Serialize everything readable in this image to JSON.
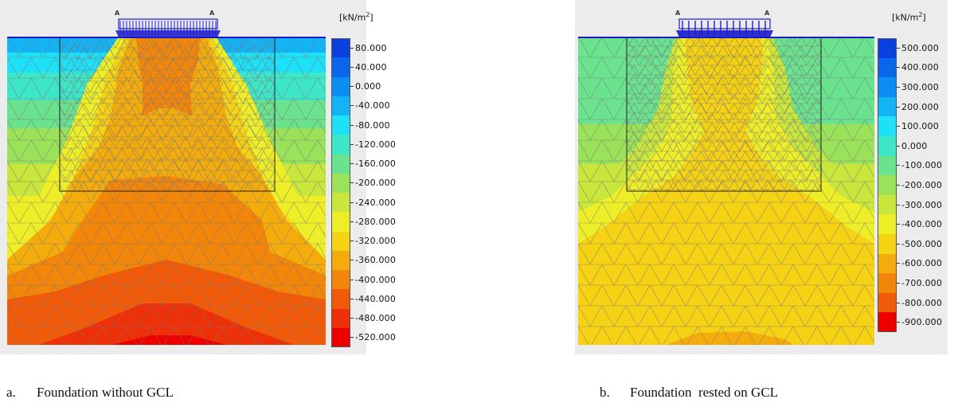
{
  "panel_a": {
    "unit": "[kN/m 2]",
    "unit_base": "[kN/m",
    "unit_exp": "2",
    "unit_close": "]",
    "load_labels": [
      "A",
      "A"
    ],
    "legend": {
      "labels": [
        "80.000",
        "40.000",
        "0.000",
        "-40.000",
        "-80.000",
        "-120.000",
        "-160.000",
        "-200.000",
        "-240.000",
        "-280.000",
        "-320.000",
        "-360.000",
        "-400.000",
        "-440.000",
        "-480.000",
        "-520.000"
      ],
      "colors": [
        "#0a3fe0",
        "#0a66ea",
        "#0a8ef2",
        "#12b4f6",
        "#1ee0f6",
        "#3ee6c8",
        "#6ae28e",
        "#9ae25a",
        "#c8e63c",
        "#eeee28",
        "#f6d214",
        "#f4ac0c",
        "#f2860a",
        "#f05a08",
        "#ee3008",
        "#ec0000"
      ]
    },
    "caption_letter": "a.",
    "caption_text": "Foundation without GCL"
  },
  "panel_b": {
    "unit": "[kN/m 2]",
    "unit_base": "[kN/m",
    "unit_exp": "2",
    "unit_close": "]",
    "load_labels": [
      "A",
      "A"
    ],
    "legend": {
      "labels": [
        "500.000",
        "400.000",
        "300.000",
        "200.000",
        "100.000",
        "0.000",
        "-100.000",
        "-200.000",
        "-300.000",
        "-400.000",
        "-500.000",
        "-600.000",
        "-700.000",
        "-800.000",
        "-900.000"
      ],
      "colors": [
        "#0a3fe0",
        "#0a66ea",
        "#0a8ef2",
        "#12b4f6",
        "#1ee0f6",
        "#3ee6c8",
        "#6ae28e",
        "#9ae25a",
        "#c8e63c",
        "#eeee28",
        "#f6d214",
        "#f4ac0c",
        "#f2860a",
        "#f05a08",
        "#ec0000"
      ]
    },
    "caption_letter": "b.",
    "caption_text": "Foundation  rested on GCL"
  }
}
